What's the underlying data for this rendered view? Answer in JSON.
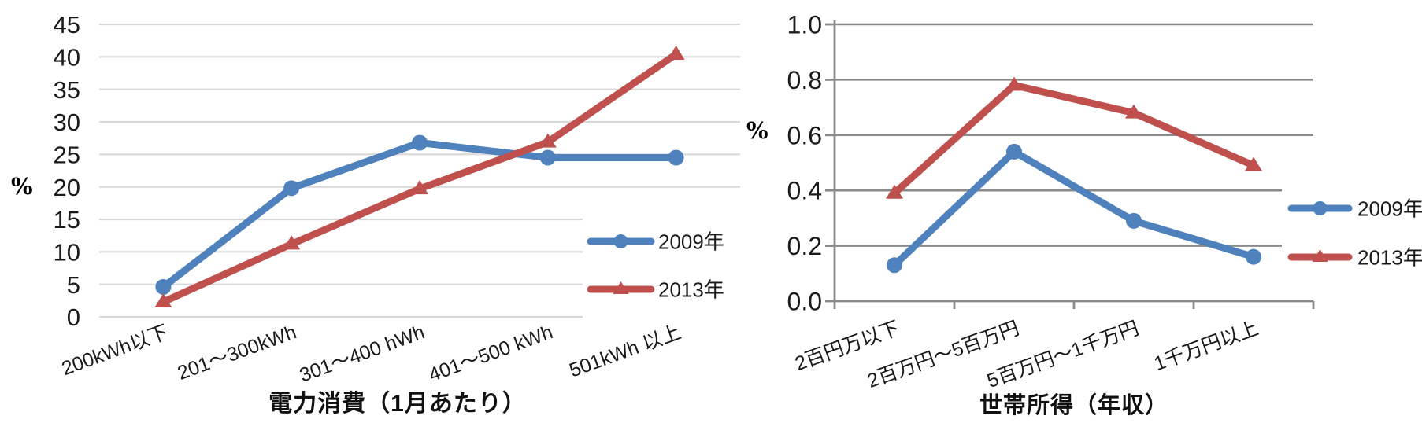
{
  "chart_data": [
    {
      "type": "line",
      "title": "電力消費（1月あたり）",
      "y_unit": "%",
      "xlabel": "",
      "ylabel": "%",
      "categories": [
        "200kWh以下",
        "201～300kWh",
        "301～400 hWh",
        "401～500 kWh",
        "501kWh 以上"
      ],
      "series": [
        {
          "name": "2009年",
          "color": "#4F81BD",
          "marker": "circle",
          "values": [
            4.6,
            19.8,
            26.8,
            24.5,
            24.5
          ]
        },
        {
          "name": "2013年",
          "color": "#C0504D",
          "marker": "triangle",
          "values": [
            2.3,
            11.2,
            19.7,
            26.9,
            40.4
          ]
        }
      ],
      "ylim": [
        0,
        45
      ],
      "y_ticks": [
        0,
        5,
        10,
        15,
        20,
        25,
        30,
        35,
        40,
        45
      ],
      "y_decimals": 0,
      "grid": true,
      "legend_position": "right-middle"
    },
    {
      "type": "line",
      "title": "世帯所得（年収）",
      "y_unit": "%",
      "xlabel": "",
      "ylabel": "%",
      "categories": [
        "2百円万以下",
        "2百万円～5百万円",
        "5百万円～1千万円",
        "1千万円以上"
      ],
      "series": [
        {
          "name": "2009年",
          "color": "#4F81BD",
          "marker": "circle",
          "values": [
            0.13,
            0.54,
            0.29,
            0.16
          ]
        },
        {
          "name": "2013年",
          "color": "#C0504D",
          "marker": "triangle",
          "values": [
            0.39,
            0.78,
            0.68,
            0.49
          ]
        }
      ],
      "ylim": [
        0,
        1.0
      ],
      "y_ticks": [
        0,
        0.2,
        0.4,
        0.6,
        0.8,
        1.0
      ],
      "y_decimals": 1,
      "grid": true,
      "legend_position": "right-middle"
    }
  ],
  "colors": {
    "series_2009": "#4F81BD",
    "series_2013": "#C0504D",
    "grid_left": "#D9D9D9",
    "grid_right": "#8A8A8A",
    "text": "#1A1A1A"
  }
}
